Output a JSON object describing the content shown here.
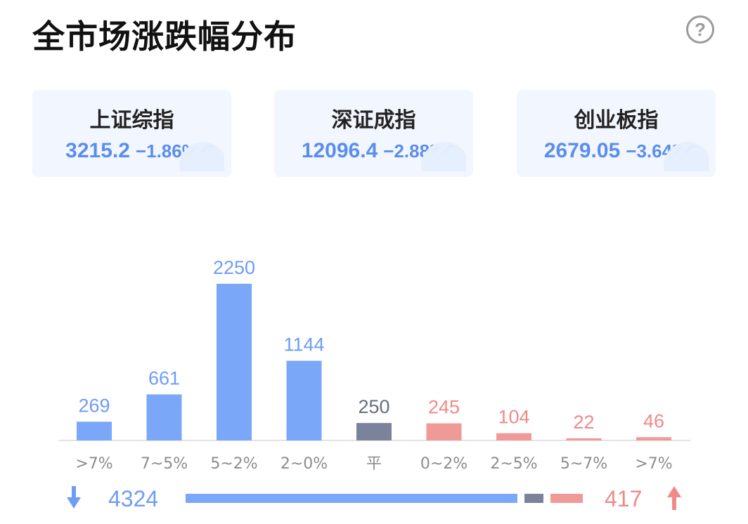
{
  "header": {
    "title": "全市场涨跌幅分布",
    "help_icon": "?"
  },
  "indices": [
    {
      "name": "上证综指",
      "value": "3215.2",
      "change": "−1.86%"
    },
    {
      "name": "深证成指",
      "value": "12096.4",
      "change": "−2.88%"
    },
    {
      "name": "创业板指",
      "value": "2679.05",
      "change": "−3.64%"
    }
  ],
  "colors": {
    "down": "#7ba7f8",
    "flat": "#7a829c",
    "up": "#ef9a97",
    "down_text": "#6f9cf5",
    "up_text": "#ef8a88",
    "flat_text": "#666c80"
  },
  "chart_data": {
    "type": "bar",
    "categories": [
      ">7%",
      "7~5%",
      "5~2%",
      "2~0%",
      "平",
      "0~2%",
      "2~5%",
      "5~7%",
      ">7%"
    ],
    "values": [
      269,
      661,
      2250,
      1144,
      250,
      245,
      104,
      22,
      46
    ],
    "groups": [
      "down",
      "down",
      "down",
      "down",
      "flat",
      "up",
      "up",
      "up",
      "up"
    ],
    "ylim": [
      0,
      2250
    ],
    "grid": false,
    "xlabel": "",
    "ylabel": ""
  },
  "summary": {
    "down_count": "4324",
    "up_count": "417",
    "flat_count": 250
  }
}
